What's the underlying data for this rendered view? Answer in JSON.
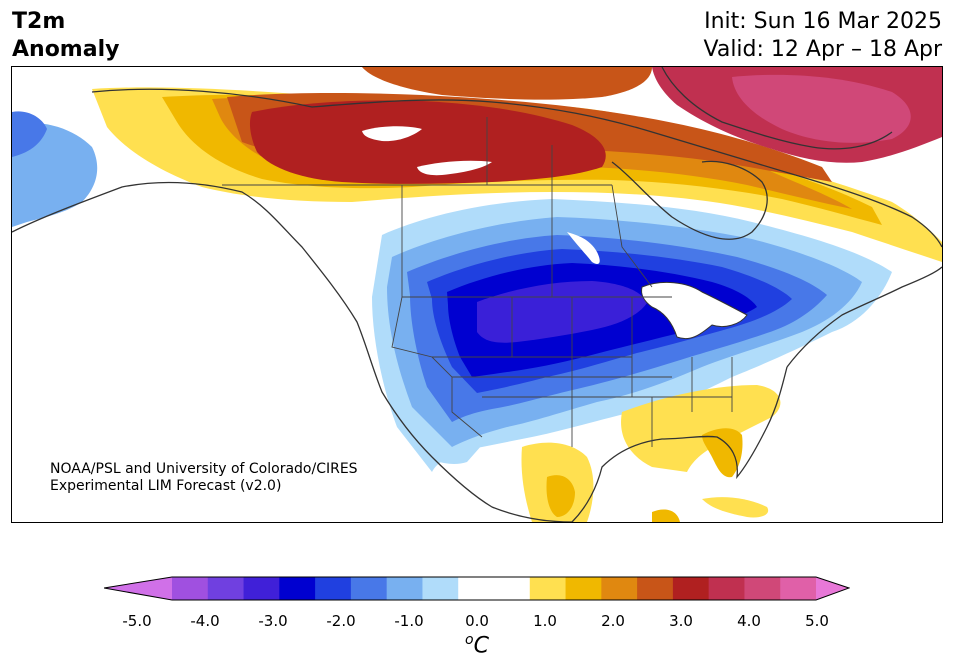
{
  "title": {
    "line1": "T2m",
    "line2": "Anomaly"
  },
  "dates": {
    "init": "Init: Sun 16 Mar 2025",
    "valid": "Valid: 12 Apr – 18 Apr"
  },
  "credit": {
    "line1": "NOAA/PSL and University of Colorado/CIRES",
    "line2": "Experimental LIM Forecast (v2.0)"
  },
  "colorbar": {
    "ticks": [
      "-5.0",
      "-4.0",
      "-3.0",
      "-2.0",
      "-1.0",
      "0.0",
      "1.0",
      "2.0",
      "3.0",
      "4.0",
      "5.0"
    ],
    "unit_main": "C",
    "unit_sup": "o",
    "colors": [
      "#d070e8",
      "#a050e0",
      "#7040e0",
      "#4020d8",
      "#0000d0",
      "#2040e0",
      "#4878e8",
      "#78b0f0",
      "#b0dcfa",
      "#ffffff",
      "#ffffff",
      "#ffe050",
      "#f0b800",
      "#e08810",
      "#c85518",
      "#b02020",
      "#c03050",
      "#d04878",
      "#e060a8",
      "#e878d8"
    ]
  }
}
